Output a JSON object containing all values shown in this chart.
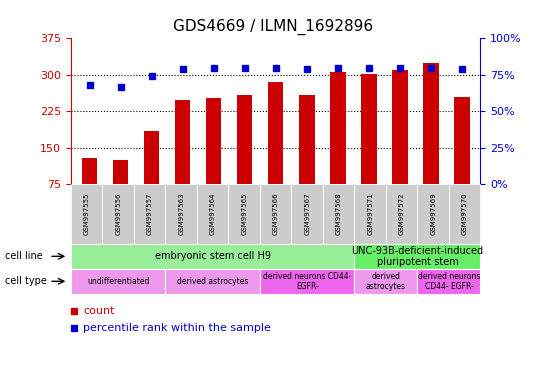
{
  "title": "GDS4669 / ILMN_1692896",
  "samples": [
    "GSM997555",
    "GSM997556",
    "GSM997557",
    "GSM997563",
    "GSM997564",
    "GSM997565",
    "GSM997566",
    "GSM997567",
    "GSM997568",
    "GSM997571",
    "GSM997572",
    "GSM997569",
    "GSM997570"
  ],
  "counts": [
    130,
    125,
    185,
    248,
    252,
    258,
    285,
    258,
    305,
    302,
    310,
    325,
    255
  ],
  "percentiles": [
    68,
    67,
    74,
    79,
    80,
    80,
    80,
    79,
    80,
    80,
    80,
    80,
    79
  ],
  "ylim_left": [
    75,
    375
  ],
  "ylim_right": [
    0,
    100
  ],
  "yticks_left": [
    75,
    150,
    225,
    300,
    375
  ],
  "yticks_right": [
    0,
    25,
    50,
    75,
    100
  ],
  "bar_color": "#cc0000",
  "dot_color": "#0000cc",
  "bar_width": 0.5,
  "cell_line_groups": [
    {
      "label": "embryonic stem cell H9",
      "start": 0,
      "end": 9,
      "color": "#99ee99"
    },
    {
      "label": "UNC-93B-deficient-induced\npluripotent stem",
      "start": 9,
      "end": 13,
      "color": "#66ee66"
    }
  ],
  "cell_type_groups": [
    {
      "label": "undifferentiated",
      "start": 0,
      "end": 3,
      "color": "#ee99ee"
    },
    {
      "label": "derived astrocytes",
      "start": 3,
      "end": 6,
      "color": "#ee99ee"
    },
    {
      "label": "derived neurons CD44-\nEGFR-",
      "start": 6,
      "end": 9,
      "color": "#ee66ee"
    },
    {
      "label": "derived\nastrocytes",
      "start": 9,
      "end": 11,
      "color": "#ee99ee"
    },
    {
      "label": "derived neurons\nCD44- EGFR-",
      "start": 11,
      "end": 13,
      "color": "#ee66ee"
    }
  ],
  "legend_count_color": "#cc0000",
  "legend_pct_color": "#0000cc",
  "bg_color": "#ffffff",
  "tick_bg_color": "#cccccc",
  "grid_color": "#000000",
  "left_axis_color": "#cc0000",
  "right_axis_color": "#0000cc"
}
